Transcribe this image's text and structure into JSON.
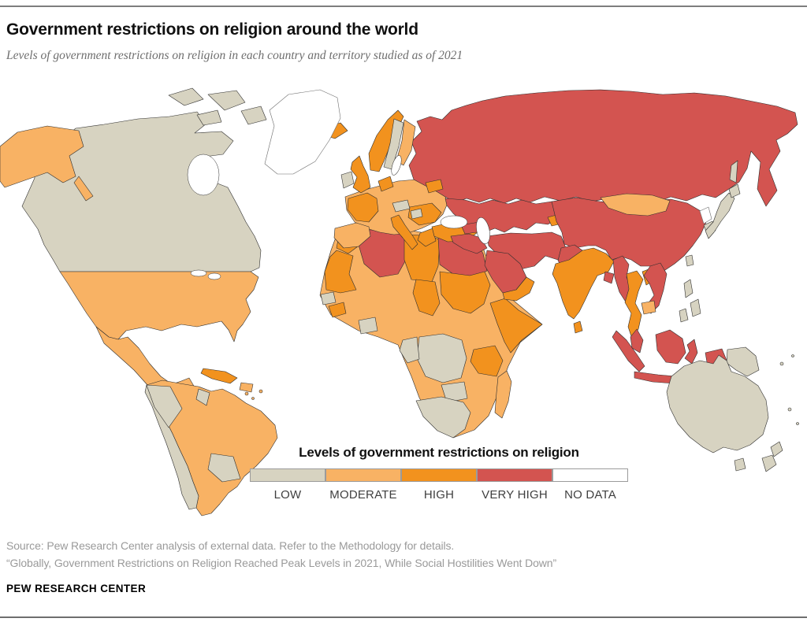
{
  "header": {
    "title": "Government restrictions on religion around the world",
    "subtitle": "Levels of government restrictions on religion in each country and territory studied as of 2021"
  },
  "legend": {
    "title": "Levels of government restrictions on religion",
    "swatch_border": "#9b9b9b",
    "items": [
      {
        "id": "low",
        "label": "LOW",
        "color": "#D7D3C1"
      },
      {
        "id": "moderate",
        "label": "MODERATE",
        "color": "#F8B264"
      },
      {
        "id": "high",
        "label": "HIGH",
        "color": "#F2921E"
      },
      {
        "id": "very_high",
        "label": "VERY HIGH",
        "color": "#D35450"
      },
      {
        "id": "no_data",
        "label": "NO DATA",
        "color": "#FFFFFF"
      }
    ]
  },
  "map": {
    "ocean": "#FFFFFF",
    "border": "#2F2F2F",
    "no_data_border": "#6E6E6E",
    "regions": {
      "greenland": "no_data",
      "canada": "low",
      "canada-arctic": "low",
      "alaska": "moderate",
      "usa": "moderate",
      "mexico": "moderate",
      "guatemala": "low",
      "cuba": "high",
      "hispaniola": "moderate",
      "caribbean-islands": "moderate",
      "south-america": "moderate",
      "andes": "low",
      "colombia": "low",
      "paraguay-uruguay": "low",
      "guyana": "low",
      "africa": "moderate",
      "morocco": "high",
      "mauritania": "high",
      "algeria": "very_high",
      "libya": "high",
      "egypt": "very_high",
      "chad": "high",
      "sudan": "high",
      "horn-of-africa": "high",
      "senegal": "low",
      "guinea": "high",
      "ghana": "low",
      "drc": "low",
      "congo-gabon": "low",
      "zambia": "low",
      "tanzania": "high",
      "southern-africa": "low",
      "madagascar": "moderate",
      "europe": "moderate",
      "norway": "high",
      "sweden": "low",
      "finland": "moderate",
      "iceland": "high",
      "uk": "high",
      "ireland": "low",
      "france": "high",
      "iberia": "moderate",
      "italy": "high",
      "greece": "high",
      "balkans": "high",
      "benelux": "high",
      "austria": "low",
      "hungary": "low",
      "belarus": "high",
      "turkey": "high",
      "russia": "very_high",
      "central-asia": "very_high",
      "kyrgyzstan": "high",
      "caucasus": "very_high",
      "china": "very_high",
      "mongolia": "moderate",
      "iraq-syria": "very_high",
      "iran-afghanistan": "very_high",
      "saudi-arabia": "very_high",
      "yemen-oman": "high",
      "pakistan": "very_high",
      "india": "high",
      "sri-lanka": "high",
      "bangladesh": "very_high",
      "myanmar": "very_high",
      "thailand": "high",
      "laos": "high",
      "vietnam": "very_high",
      "cambodia": "moderate",
      "malay-peninsula": "very_high",
      "sumatra": "very_high",
      "java": "very_high",
      "borneo": "very_high",
      "sulawesi": "very_high",
      "west-new-guinea": "very_high",
      "papua-new-guinea": "low",
      "philippines": "low",
      "taiwan": "low",
      "north-korea": "no_data",
      "south-korea": "low",
      "japan": "low",
      "sakhalin": "low",
      "australia": "low",
      "tasmania": "low",
      "new-zealand": "low",
      "pacific-islands": "low"
    }
  },
  "footer": {
    "source_line1": "Source: Pew Research Center analysis of external data. Refer to the Methodology for details.",
    "source_line2": "“Globally, Government Restrictions on Religion Reached Peak Levels in 2021, While Social Hostilities Went Down”",
    "brand": "PEW RESEARCH CENTER"
  }
}
